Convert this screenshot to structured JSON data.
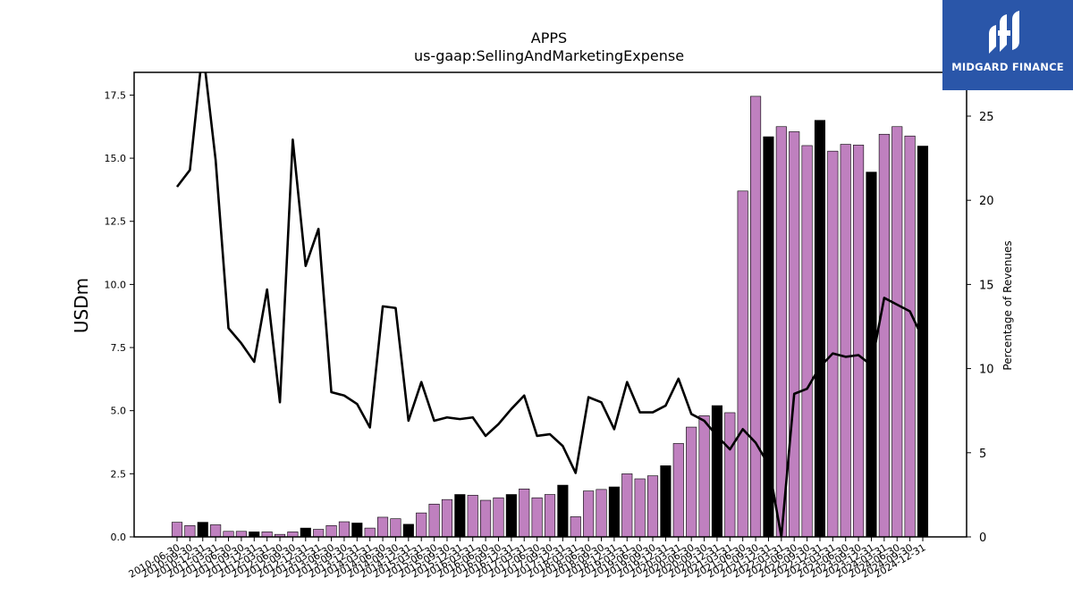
{
  "logo": {
    "text": "MIDGARD FINANCE",
    "icon": "midgard-logo-icon",
    "color": "#2a56a9"
  },
  "chart_data": {
    "type": "bar",
    "title": "APPS",
    "subtitle": "us-gaap:SellingAndMarketingExpense",
    "ylabel": "USDm",
    "y2label": "Percentage of Revenues",
    "ylim": [
      0,
      18.4
    ],
    "y2lim": [
      0,
      27.6
    ],
    "yticks": [
      "0.0",
      "2.5",
      "5.0",
      "7.5",
      "10.0",
      "12.5",
      "15.0",
      "17.5"
    ],
    "y2ticks": [
      "0",
      "5",
      "10",
      "15",
      "20",
      "25"
    ],
    "grid": false,
    "colors": {
      "quarter": "#bf80bf",
      "year_end": "#000000",
      "line": "#000000"
    },
    "categories": [
      "2010-06-30",
      "2010-09-30",
      "2010-12-31",
      "2011-03-31",
      "2011-06-30",
      "2011-09-30",
      "2011-12-31",
      "2012-03-31",
      "2012-06-30",
      "2012-09-30",
      "2012-12-31",
      "2013-03-31",
      "2013-06-30",
      "2013-09-30",
      "2013-12-31",
      "2014-03-31",
      "2014-06-30",
      "2014-09-30",
      "2014-12-31",
      "2015-03-31",
      "2015-06-30",
      "2015-09-30",
      "2015-12-31",
      "2016-03-31",
      "2016-06-30",
      "2016-09-30",
      "2016-12-31",
      "2017-03-31",
      "2017-06-30",
      "2017-09-30",
      "2017-12-31",
      "2018-03-31",
      "2018-06-30",
      "2018-09-30",
      "2018-12-31",
      "2019-03-31",
      "2019-06-30",
      "2019-09-30",
      "2019-12-31",
      "2020-03-31",
      "2020-06-30",
      "2020-09-30",
      "2020-12-31",
      "2021-03-31",
      "2021-06-30",
      "2021-09-30",
      "2021-12-31",
      "2022-03-31",
      "2022-06-30",
      "2022-09-30",
      "2022-12-31",
      "2023-03-31",
      "2023-06-30",
      "2023-09-30",
      "2023-12-31",
      "2024-03-31",
      "2024-06-30",
      "2024-09-30",
      "2024-12-31"
    ],
    "series": [
      {
        "values": [
          0.58,
          0.45,
          0.58,
          0.48,
          0.22,
          0.22,
          0.2,
          0.2,
          0.1,
          0.2,
          0.35,
          0.3,
          0.45,
          0.6,
          0.55,
          0.35,
          0.78,
          0.72,
          0.5,
          0.95,
          1.3,
          1.48,
          1.68,
          1.65,
          1.45,
          1.55,
          1.68,
          1.9,
          1.55,
          1.68,
          2.05,
          0.8,
          1.82,
          1.88,
          1.98,
          2.5,
          2.3,
          2.42,
          2.82,
          3.7,
          4.35,
          4.8,
          5.2,
          4.92,
          13.7,
          17.45,
          15.85,
          16.25,
          16.05,
          15.5,
          16.5,
          15.28,
          15.55,
          15.52,
          14.45,
          15.95,
          16.25,
          15.88,
          15.48
        ],
        "year_end": [
          false,
          false,
          true,
          false,
          false,
          false,
          true,
          false,
          false,
          false,
          true,
          false,
          false,
          false,
          true,
          false,
          false,
          false,
          true,
          false,
          false,
          false,
          true,
          false,
          false,
          false,
          true,
          false,
          false,
          false,
          true,
          false,
          false,
          false,
          true,
          false,
          false,
          false,
          true,
          false,
          false,
          false,
          true,
          false,
          false,
          false,
          true,
          false,
          false,
          false,
          true,
          false,
          false,
          false,
          true,
          false,
          false,
          false,
          true
        ]
      },
      {
        "type": "line",
        "axis": "right",
        "values": [
          20.8,
          21.8,
          29,
          22.4,
          12.4,
          11.5,
          10.4,
          14.7,
          8,
          23.6,
          16.1,
          18.3,
          8.6,
          8.4,
          7.9,
          6.5,
          13.7,
          13.6,
          6.9,
          9.2,
          6.9,
          7.1,
          7,
          7.1,
          6,
          6.7,
          7.6,
          8.4,
          6,
          6.1,
          5.4,
          3.8,
          8.3,
          8,
          6.4,
          9.2,
          7.4,
          7.4,
          7.8,
          9.4,
          7.3,
          6.9,
          6,
          5.2,
          6.4,
          5.6,
          4.3,
          0,
          8.5,
          8.8,
          10.1,
          10.9,
          10.7,
          10.8,
          10.2,
          14.2,
          13.8,
          13.4,
          11.8
        ]
      }
    ]
  }
}
